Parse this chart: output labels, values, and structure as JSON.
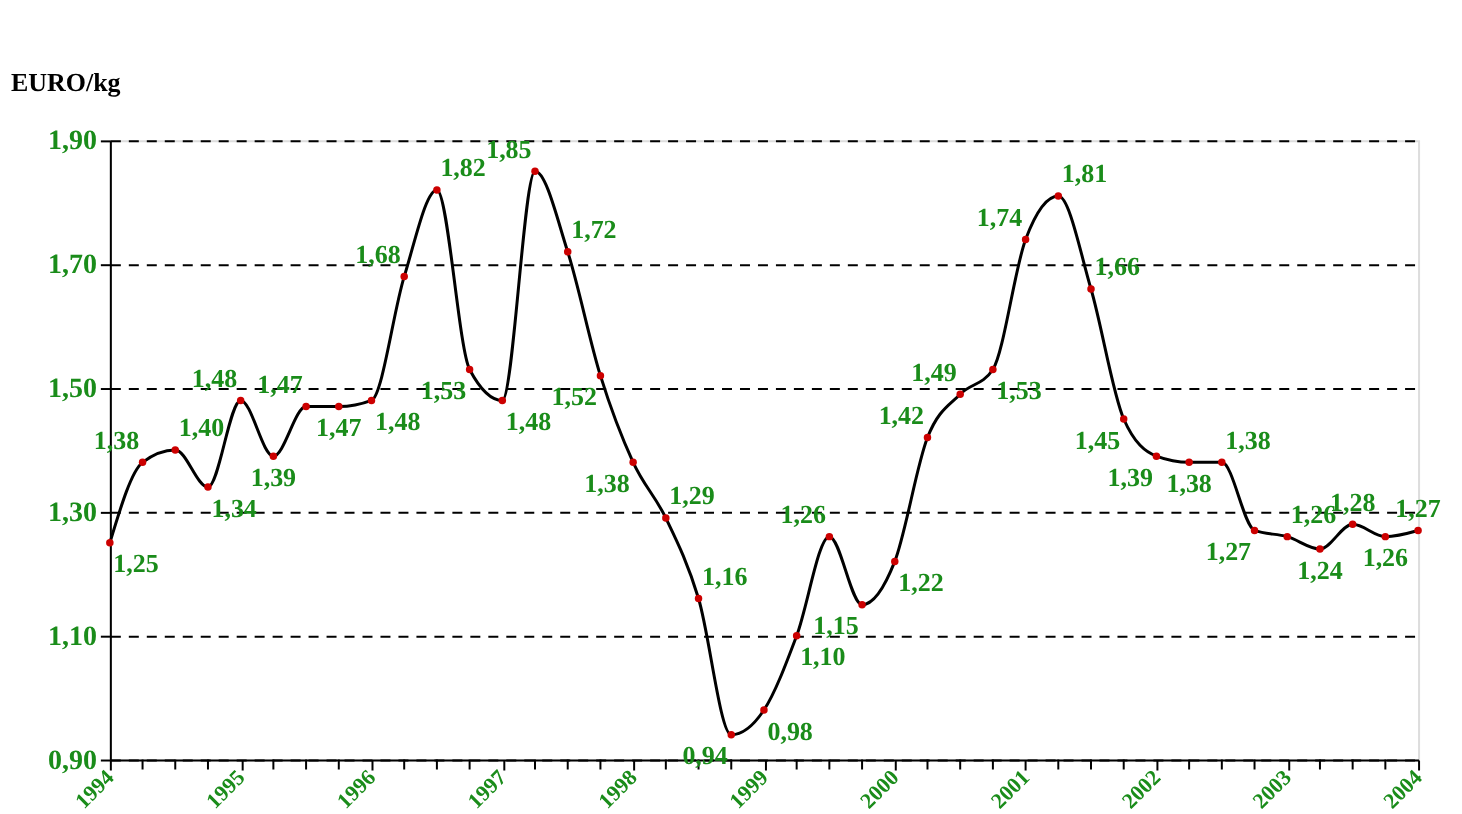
{
  "chart_data": {
    "type": "line",
    "ylabel": "EURO/kg",
    "x": [
      1994,
      1994.25,
      1994.5,
      1994.75,
      1995,
      1995.25,
      1995.5,
      1995.75,
      1996,
      1996.25,
      1996.5,
      1996.75,
      1997,
      1997.25,
      1997.5,
      1997.75,
      1998,
      1998.25,
      1998.5,
      1998.75,
      1999,
      1999.25,
      1999.5,
      1999.75,
      2000,
      2000.25,
      2000.5,
      2000.75,
      2001,
      2001.25,
      2001.5,
      2001.75,
      2002,
      2002.25,
      2002.5,
      2002.75,
      2003,
      2003.25,
      2003.5,
      2003.75,
      2004
    ],
    "series": [
      {
        "color": "#000000",
        "values": [
          1.25,
          1.38,
          1.4,
          1.34,
          1.48,
          1.39,
          1.47,
          1.47,
          1.48,
          1.68,
          1.82,
          1.53,
          1.48,
          1.85,
          1.72,
          1.52,
          1.38,
          1.29,
          1.16,
          0.94,
          0.98,
          1.1,
          1.26,
          1.15,
          1.22,
          1.42,
          1.49,
          1.53,
          1.74,
          1.81,
          1.66,
          1.45,
          1.39,
          1.38,
          1.38,
          1.27,
          1.26,
          1.24,
          1.28,
          1.26,
          1.27
        ],
        "value_labels": [
          "1,25",
          "1,38",
          "1,40",
          "1,34",
          "1,48",
          "1,39",
          "1,47",
          "1,47",
          "1,48",
          "1,68",
          "1,82",
          "1,53",
          "1,48",
          "1,85",
          "1,72",
          "1,52",
          "1,38",
          "1,29",
          "1,16",
          "0,94",
          "0,98",
          "1,10",
          "1,26",
          "1,15",
          "1,22",
          "1,42",
          "1,49",
          "1,53",
          "1,74",
          "1,81",
          "1,66",
          "1,45",
          "1,39",
          "1,38",
          "1,38",
          "1,27",
          "1,26",
          "1,24",
          "1,28",
          "1,26",
          "1,27"
        ]
      }
    ],
    "xlim": [
      1994,
      2004
    ],
    "xticks": [
      1994,
      {
        "value": 1994.25,
        "label": null
      },
      {
        "value": 1994.5,
        "label": null
      },
      {
        "value": 1994.75,
        "label": null
      },
      1995,
      {
        "value": 1995.25,
        "label": null
      },
      {
        "value": 1995.5,
        "label": null
      },
      {
        "value": 1995.75,
        "label": null
      },
      1996,
      {
        "value": 1996.25,
        "label": null
      },
      {
        "value": 1996.5,
        "label": null
      },
      {
        "value": 1996.75,
        "label": null
      },
      1997,
      {
        "value": 1997.25,
        "label": null
      },
      {
        "value": 1997.5,
        "label": null
      },
      {
        "value": 1997.75,
        "label": null
      },
      1998,
      {
        "value": 1998.25,
        "label": null
      },
      {
        "value": 1998.5,
        "label": null
      },
      {
        "value": 1998.75,
        "label": null
      },
      1999,
      {
        "value": 1999.25,
        "label": null
      },
      {
        "value": 1999.5,
        "label": null
      },
      {
        "value": 1999.75,
        "label": null
      },
      2000,
      {
        "value": 2000.25,
        "label": null
      },
      {
        "value": 2000.5,
        "label": null
      },
      {
        "value": 2000.75,
        "label": null
      },
      2001,
      {
        "value": 2001.25,
        "label": null
      },
      {
        "value": 2001.5,
        "label": null
      },
      {
        "value": 2001.75,
        "label": null
      },
      2002,
      {
        "value": 2002.25,
        "label": null
      },
      {
        "value": 2002.5,
        "label": null
      },
      {
        "value": 2002.75,
        "label": null
      },
      2003,
      {
        "value": 2003.25,
        "label": null
      },
      {
        "value": 2003.5,
        "label": null
      },
      {
        "value": 2003.75,
        "label": null
      },
      2004
    ],
    "ylim": [
      0.9,
      1.9
    ],
    "yticks": [
      {
        "value": 0.9,
        "label": "0,90"
      },
      {
        "value": 1.1,
        "label": "1,10"
      },
      {
        "value": 1.3,
        "label": "1,30"
      },
      {
        "value": 1.5,
        "label": "1,50"
      },
      {
        "value": 1.7,
        "label": "1,70"
      },
      {
        "value": 1.9,
        "label": "1,90"
      }
    ],
    "grid": "y",
    "marker": "circle",
    "line_style": "solid",
    "legend": false
  }
}
